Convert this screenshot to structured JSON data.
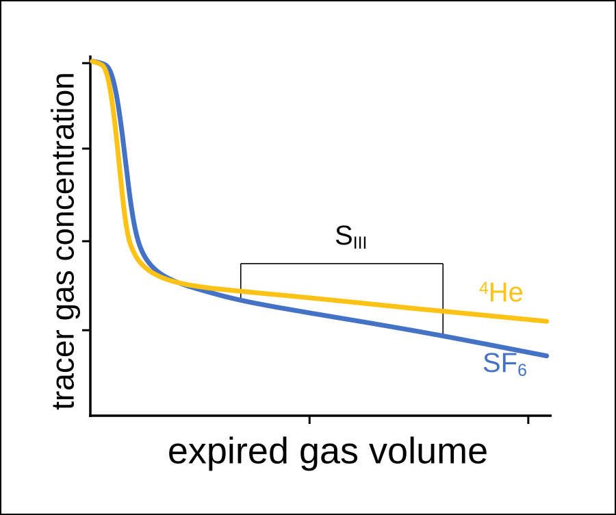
{
  "labels": {
    "slope": {
      "main": "S",
      "sub": "III"
    },
    "he": {
      "sup": "4",
      "base": "He",
      "color": "#FCC216"
    },
    "sf6": {
      "base": "SF",
      "sub": "6",
      "color": "#4472C4"
    }
  },
  "chart_data": {
    "type": "line",
    "title": "",
    "xlabel": "expired gas volume",
    "ylabel": "tracer gas concentration",
    "axis_color": "#000000",
    "grid": false,
    "legend": "inline-labels",
    "x_range": [
      0,
      1
    ],
    "y_range": [
      0,
      1
    ],
    "tick_labels": "none",
    "x_ticks": [
      0.478,
      0.955
    ],
    "y_ticks": [
      0.24,
      0.49,
      0.75,
      0.99
    ],
    "series": [
      {
        "name": "SF6",
        "color": "#4472C4",
        "points": [
          [
            0.006,
            0.995
          ],
          [
            0.028,
            0.99
          ],
          [
            0.042,
            0.976
          ],
          [
            0.054,
            0.925
          ],
          [
            0.066,
            0.83
          ],
          [
            0.078,
            0.7
          ],
          [
            0.09,
            0.575
          ],
          [
            0.103,
            0.49
          ],
          [
            0.12,
            0.44
          ],
          [
            0.145,
            0.404
          ],
          [
            0.18,
            0.378
          ],
          [
            0.235,
            0.355
          ],
          [
            0.33,
            0.322
          ],
          [
            0.48,
            0.288
          ],
          [
            0.63,
            0.256
          ],
          [
            0.77,
            0.224
          ],
          [
            0.995,
            0.168
          ]
        ]
      },
      {
        "name": "4He",
        "color": "#FCC216",
        "points": [
          [
            0.004,
            0.995
          ],
          [
            0.02,
            0.99
          ],
          [
            0.032,
            0.978
          ],
          [
            0.042,
            0.93
          ],
          [
            0.052,
            0.84
          ],
          [
            0.062,
            0.72
          ],
          [
            0.072,
            0.59
          ],
          [
            0.082,
            0.5
          ],
          [
            0.095,
            0.455
          ],
          [
            0.112,
            0.423
          ],
          [
            0.14,
            0.396
          ],
          [
            0.18,
            0.376
          ],
          [
            0.24,
            0.361
          ],
          [
            0.33,
            0.349
          ],
          [
            0.48,
            0.331
          ],
          [
            0.63,
            0.311
          ],
          [
            0.77,
            0.293
          ],
          [
            0.995,
            0.265
          ]
        ]
      }
    ],
    "annotations": [
      {
        "type": "bracket",
        "label": "S_III",
        "x1": 0.328,
        "x2": 0.769,
        "y_top": 0.427,
        "y1_end": 0.323,
        "y2_end": 0.221,
        "color": "#000000"
      }
    ]
  }
}
